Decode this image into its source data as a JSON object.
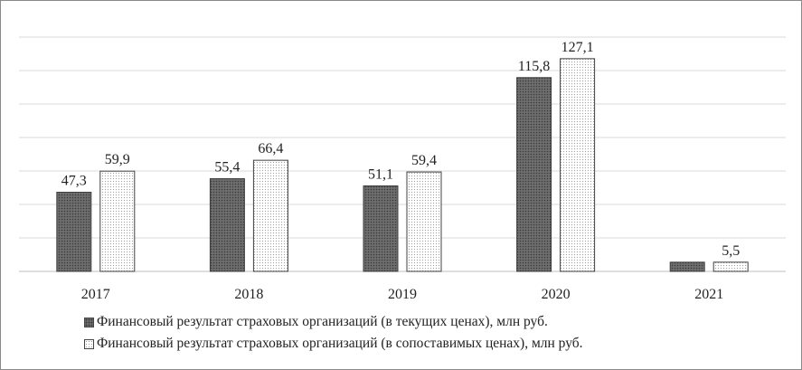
{
  "chart_data": {
    "type": "bar",
    "categories": [
      "2017",
      "2018",
      "2019",
      "2020",
      "2021"
    ],
    "series": [
      {
        "name": "Финансовый результат страховых организаций (в текущих ценах), млн  руб.",
        "values": [
          47.3,
          55.4,
          51.1,
          115.8,
          5.5
        ],
        "labels": [
          "47,3",
          "55,4",
          "51,1",
          "115,8",
          ""
        ],
        "color": "#6e6e6e",
        "pattern": "dark-dotted"
      },
      {
        "name": "Финансовый результат страховых организаций (в сопоставимых ценах), млн  руб.",
        "values": [
          59.9,
          66.4,
          59.4,
          127.1,
          5.5
        ],
        "labels": [
          "59,9",
          "66,4",
          "59,4",
          "127,1",
          "5,5"
        ],
        "color": "#ffffff",
        "pattern": "light-dotted"
      }
    ],
    "ylim": [
      0,
      140
    ],
    "grid": true,
    "gridline_step": 20,
    "legend_position": "bottom"
  }
}
